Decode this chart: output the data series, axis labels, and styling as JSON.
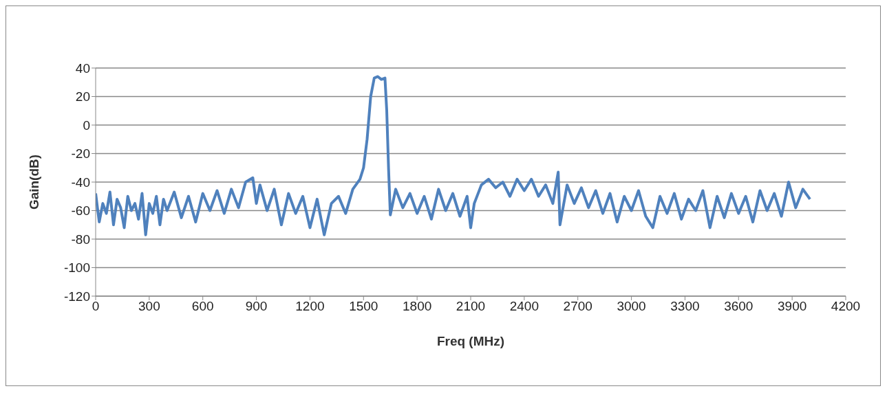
{
  "chart_data": {
    "type": "line",
    "xlabel": "Freq (MHz)",
    "ylabel": "Gain(dB)",
    "xlim": [
      0,
      4200
    ],
    "xticks": [
      0,
      300,
      600,
      900,
      1200,
      1500,
      1800,
      2100,
      2400,
      2700,
      3000,
      3300,
      3600,
      3900,
      4200
    ],
    "ylim": [
      -120,
      40
    ],
    "yticks": [
      -120,
      -100,
      -80,
      -60,
      -40,
      -20,
      0,
      20,
      40
    ],
    "grid": "y",
    "marker": "none",
    "line_style": "solid",
    "series": [
      {
        "color": "#4f81bd",
        "x": [
          0,
          20,
          40,
          60,
          80,
          100,
          120,
          140,
          160,
          180,
          200,
          220,
          240,
          260,
          280,
          300,
          320,
          340,
          360,
          380,
          400,
          440,
          480,
          520,
          560,
          600,
          640,
          680,
          720,
          760,
          800,
          840,
          880,
          900,
          920,
          960,
          1000,
          1040,
          1080,
          1120,
          1160,
          1200,
          1240,
          1280,
          1320,
          1360,
          1400,
          1440,
          1480,
          1500,
          1520,
          1540,
          1560,
          1580,
          1600,
          1620,
          1630,
          1640,
          1650,
          1680,
          1720,
          1760,
          1800,
          1840,
          1880,
          1920,
          1960,
          2000,
          2040,
          2080,
          2100,
          2120,
          2160,
          2200,
          2240,
          2280,
          2320,
          2360,
          2400,
          2440,
          2480,
          2520,
          2560,
          2590,
          2600,
          2640,
          2680,
          2720,
          2760,
          2800,
          2840,
          2880,
          2920,
          2960,
          3000,
          3040,
          3080,
          3120,
          3160,
          3200,
          3240,
          3280,
          3320,
          3360,
          3400,
          3440,
          3480,
          3520,
          3560,
          3600,
          3640,
          3680,
          3720,
          3760,
          3800,
          3840,
          3880,
          3920,
          3960,
          4000
        ],
        "values": [
          -48,
          -68,
          -55,
          -62,
          -47,
          -70,
          -52,
          -58,
          -72,
          -50,
          -60,
          -55,
          -66,
          -48,
          -77,
          -55,
          -62,
          -50,
          -70,
          -52,
          -60,
          -47,
          -65,
          -50,
          -68,
          -48,
          -60,
          -46,
          -62,
          -45,
          -58,
          -40,
          -37,
          -55,
          -42,
          -60,
          -45,
          -70,
          -48,
          -62,
          -50,
          -72,
          -52,
          -77,
          -55,
          -50,
          -62,
          -45,
          -38,
          -30,
          -10,
          20,
          33,
          34,
          32,
          33,
          10,
          -30,
          -63,
          -45,
          -58,
          -48,
          -62,
          -50,
          -66,
          -45,
          -60,
          -48,
          -64,
          -50,
          -72,
          -55,
          -42,
          -38,
          -44,
          -40,
          -50,
          -38,
          -46,
          -38,
          -50,
          -42,
          -55,
          -33,
          -70,
          -42,
          -55,
          -44,
          -58,
          -46,
          -62,
          -48,
          -68,
          -50,
          -60,
          -46,
          -64,
          -72,
          -50,
          -62,
          -48,
          -66,
          -52,
          -60,
          -46,
          -72,
          -50,
          -65,
          -48,
          -62,
          -50,
          -68,
          -46,
          -60,
          -48,
          -64,
          -40,
          -58,
          -45,
          -52
        ]
      }
    ]
  }
}
